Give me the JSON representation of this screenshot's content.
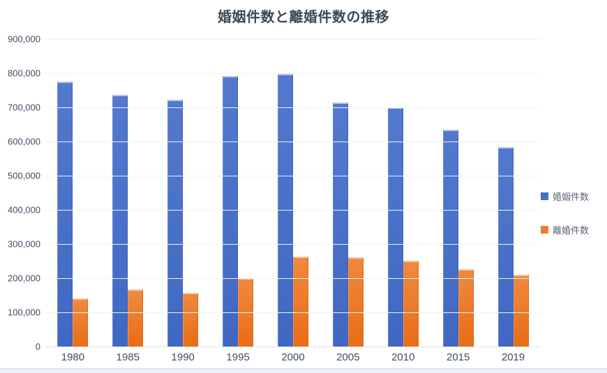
{
  "title": "婚姻件数と離婚件数の推移",
  "chart_data": {
    "type": "bar",
    "title": "婚姻件数と離婚件数の推移",
    "xlabel": "",
    "ylabel": "",
    "categories": [
      "1980",
      "1985",
      "1990",
      "1995",
      "2000",
      "2005",
      "2010",
      "2015",
      "2019"
    ],
    "series": [
      {
        "name": "婚姻件数",
        "color": "#4472C4",
        "values": [
          774702,
          735850,
          722138,
          791888,
          798138,
          714265,
          700214,
          635156,
          583000
        ]
      },
      {
        "name": "離婚件数",
        "color": "#ED7D31",
        "values": [
          141689,
          166640,
          157608,
          199016,
          264246,
          261917,
          251378,
          226215,
          210000
        ]
      }
    ],
    "ylim": [
      0,
      900000
    ],
    "ytick_step": 100000,
    "ytick_labels": [
      "0",
      "100,000",
      "200,000",
      "300,000",
      "400,000",
      "500,000",
      "600,000",
      "700,000",
      "800,000",
      "900,000"
    ],
    "grid": true,
    "legend_position": "right",
    "title_color": "#3b4859",
    "axis_label_color": "#3e4c61",
    "legend_text_color": "#5b6577"
  }
}
